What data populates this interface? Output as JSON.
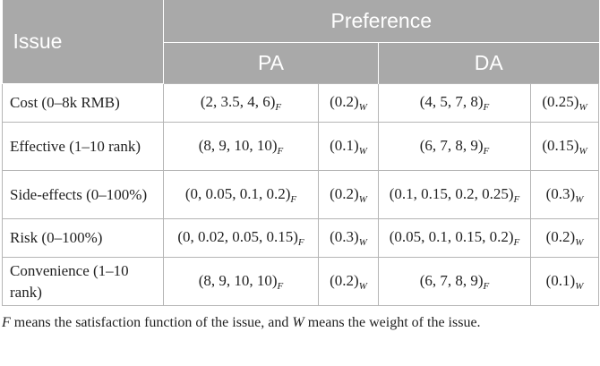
{
  "header": {
    "issue": "Issue",
    "preference": "Preference",
    "pa": "PA",
    "da": "DA"
  },
  "rows": [
    {
      "issue": "Cost (0–8k RMB)",
      "pa_f": "(2,  3.5,  4,  6)",
      "pa_w": "(0.2)",
      "da_f": "(4, 5, 7,  8)",
      "da_w": "(0.25)"
    },
    {
      "issue": "Effective (1–10 rank)",
      "pa_f": "(8,  9,  10,  10)",
      "pa_w": "(0.1)",
      "da_f": "(6, 7, 8,  9)",
      "da_w": "(0.15)"
    },
    {
      "issue": "Side-effects (0–100%)",
      "pa_f": "(0,  0.05,  0.1,  0.2)",
      "pa_w": "(0.2)",
      "da_f": "(0.1, 0.15, 0.2,  0.25)",
      "da_w": "(0.3)"
    },
    {
      "issue": "Risk (0–100%)",
      "pa_f": "(0,  0.02,  0.05,  0.15)",
      "pa_w": "(0.3)",
      "da_f": "(0.05, 0.1, 0.15,  0.2)",
      "da_w": "(0.2)"
    },
    {
      "issue": "Convenience (1–10 rank)",
      "pa_f": "(8,  9,  10,  10)",
      "pa_w": "(0.2)",
      "da_f": "(6, 7, 8,  9)",
      "da_w": "(0.1)"
    }
  ],
  "subscripts": {
    "f": "F",
    "w": "W"
  },
  "footnote": {
    "f_symbol": "F",
    "part1": " means the satisfaction function of the issue, and ",
    "w_symbol": "W",
    "part2": " means the weight of the issue."
  }
}
